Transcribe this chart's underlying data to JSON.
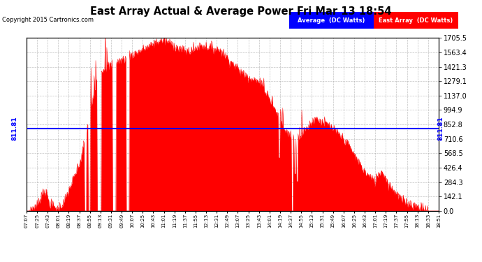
{
  "title": "East Array Actual & Average Power Fri Mar 13 18:54",
  "copyright": "Copyright 2015 Cartronics.com",
  "avg_value": 811.81,
  "avg_label": "811.81",
  "ymax": 1705.5,
  "yticks": [
    0.0,
    142.1,
    284.3,
    426.4,
    568.5,
    710.6,
    852.8,
    994.9,
    1137.0,
    1279.1,
    1421.3,
    1563.4,
    1705.5
  ],
  "background_color": "#ffffff",
  "plot_bg_color": "#ffffff",
  "grid_color": "#aaaaaa",
  "fill_color": "#ff0000",
  "line_color": "#ff0000",
  "avg_line_color": "#0000ff",
  "title_color": "#000000",
  "legend_avg_bg": "#0000ff",
  "legend_ea_bg": "#ff0000",
  "legend_text_color": "#ffffff",
  "legend_avg_text": "Average  (DC Watts)",
  "legend_ea_text": "East Array  (DC Watts)",
  "x_labels": [
    "07:07",
    "07:25",
    "07:43",
    "08:01",
    "08:19",
    "08:37",
    "08:55",
    "09:13",
    "09:31",
    "09:49",
    "10:07",
    "10:25",
    "10:43",
    "11:01",
    "11:19",
    "11:37",
    "11:55",
    "12:13",
    "12:31",
    "12:49",
    "13:07",
    "13:25",
    "13:43",
    "14:01",
    "14:19",
    "14:37",
    "14:55",
    "15:13",
    "15:31",
    "15:49",
    "16:07",
    "16:25",
    "16:43",
    "17:01",
    "17:19",
    "17:37",
    "17:55",
    "18:13",
    "18:33",
    "18:51"
  ]
}
